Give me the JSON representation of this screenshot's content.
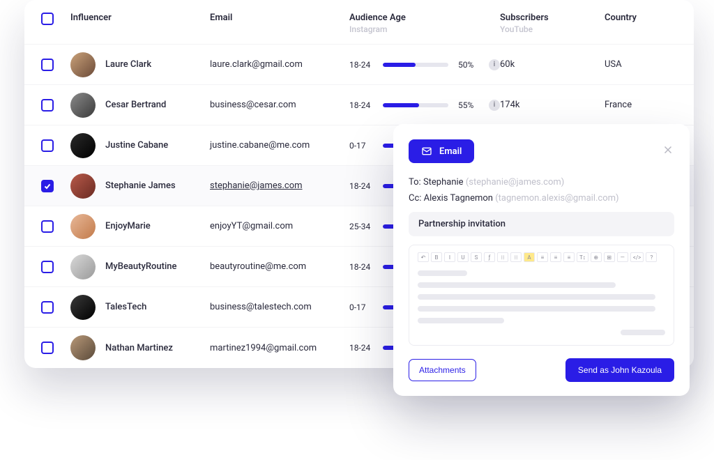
{
  "colors": {
    "accent": "#2a1de6",
    "text": "#2a2a3c",
    "muted": "#c4c4cf",
    "bar_track": "#e6e6ee",
    "row_selected_bg": "#fafafc",
    "border": "#f3f3f5",
    "shadow": "rgba(20,20,60,0.18)"
  },
  "table": {
    "headers": {
      "influencer": "Influencer",
      "email": "Email",
      "audience_age": "Audience Age",
      "audience_age_sub": "Instagram",
      "subscribers": "Subscribers",
      "subscribers_sub": "YouTube",
      "country": "Country"
    },
    "rows": [
      {
        "checked": false,
        "name": "Laure Clark",
        "email": "laure.clark@gmail.com",
        "email_underlined": false,
        "age_range": "18-24",
        "age_pct": 50,
        "age_pct_label": "50%",
        "show_pct": true,
        "subscribers": "60k",
        "country": "USA",
        "avatar_bg": "linear-gradient(135deg,#caa27a,#6b4a38)"
      },
      {
        "checked": false,
        "name": "Cesar Bertrand",
        "email": "business@cesar.com",
        "email_underlined": false,
        "age_range": "18-24",
        "age_pct": 55,
        "age_pct_label": "55%",
        "show_pct": true,
        "subscribers": "174k",
        "country": "France",
        "avatar_bg": "linear-gradient(135deg,#8a8a8a,#3a3a3a)"
      },
      {
        "checked": false,
        "name": "Justine Cabane",
        "email": "justine.cabane@me.com",
        "email_underlined": false,
        "age_range": "0-17",
        "age_pct": 35,
        "age_pct_label": "",
        "show_pct": false,
        "subscribers": "",
        "country": "",
        "avatar_bg": "linear-gradient(135deg,#2a2a2a,#000000)"
      },
      {
        "checked": true,
        "name": "Stephanie James",
        "email": "stephanie@james.com",
        "email_underlined": true,
        "age_range": "18-24",
        "age_pct": 30,
        "age_pct_label": "",
        "show_pct": false,
        "subscribers": "",
        "country": "",
        "avatar_bg": "linear-gradient(135deg,#b85a4a,#6a2a22)"
      },
      {
        "checked": false,
        "name": "EnjoyMarie",
        "email": "enjoyYT@gmail.com",
        "email_underlined": false,
        "age_range": "25-34",
        "age_pct": 32,
        "age_pct_label": "",
        "show_pct": false,
        "subscribers": "",
        "country": "",
        "avatar_bg": "linear-gradient(135deg,#e8b898,#c27a4a)"
      },
      {
        "checked": false,
        "name": "MyBeautyRoutine",
        "email": "beautyroutine@me.com",
        "email_underlined": false,
        "age_range": "18-24",
        "age_pct": 30,
        "age_pct_label": "",
        "show_pct": false,
        "subscribers": "",
        "country": "",
        "avatar_bg": "linear-gradient(135deg,#d8d8d8,#9a9a9a)"
      },
      {
        "checked": false,
        "name": "TalesTech",
        "email": "business@talestech.com",
        "email_underlined": false,
        "age_range": "0-17",
        "age_pct": 28,
        "age_pct_label": "",
        "show_pct": false,
        "subscribers": "",
        "country": "",
        "avatar_bg": "linear-gradient(135deg,#3a3a3a,#000000)"
      },
      {
        "checked": false,
        "name": "Nathan Martinez",
        "email": "martinez1994@gmail.com",
        "email_underlined": false,
        "age_range": "18-24",
        "age_pct": 30,
        "age_pct_label": "",
        "show_pct": false,
        "subscribers": "",
        "country": "",
        "avatar_bg": "linear-gradient(135deg,#b89878,#5a4a3a)"
      }
    ]
  },
  "compose": {
    "pill_label": "Email",
    "to_label": "To:",
    "to_name": "Stephanie",
    "to_email": "(stephanie@james.com)",
    "cc_label": "Cc:",
    "cc_name": "Alexis Tagnemon",
    "cc_email": "(tagnemon.alexis@gmail.com)",
    "subject": "Partnership invitation",
    "toolbar": [
      "↶",
      "B",
      "I",
      "U",
      "S",
      "ƒ",
      "⁝⁝",
      "⁝⁝",
      "A",
      "≡",
      "≡",
      "≡",
      "T↕",
      "⊕",
      "⊞",
      "—",
      "</>",
      "?"
    ],
    "toolbar_highlight_index": 8,
    "placeholder_widths": [
      "20%",
      "80%",
      "96%",
      "96%",
      "35%"
    ],
    "signature_width": "18%",
    "attachments_label": "Attachments",
    "send_label": "Send as John Kazoula"
  }
}
